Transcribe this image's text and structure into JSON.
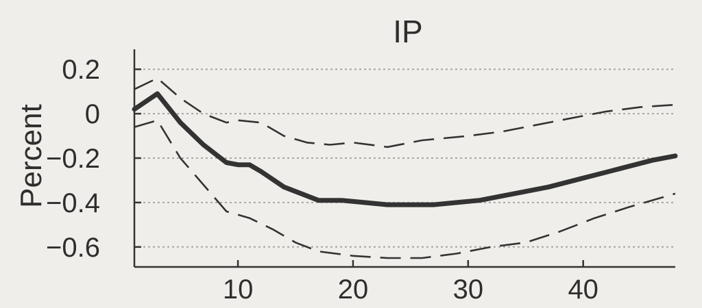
{
  "colors": {
    "background": "#efeeea",
    "line": "#333333",
    "axis": "#333333",
    "grid": "#9a9a9a",
    "text": "#2e2e2e"
  },
  "chart_data": {
    "type": "line",
    "title": "IP",
    "xlabel": "",
    "ylabel": "Percent",
    "xlim": [
      1,
      48
    ],
    "ylim": [
      -0.69,
      0.29
    ],
    "xticks": [
      10,
      20,
      30,
      40
    ],
    "yticks": [
      0.2,
      0,
      -0.2,
      -0.4,
      -0.6
    ],
    "ytick_labels": [
      "0.2",
      "0",
      "−0.2",
      "−0.4",
      "−0.6"
    ],
    "grid": "horizontal dotted",
    "series": [
      {
        "style": "solid-thick",
        "x": [
          1,
          3,
          5,
          7,
          9,
          10,
          11,
          12,
          14,
          17,
          19,
          21,
          23,
          25,
          27,
          29,
          31,
          33,
          35,
          37,
          40,
          43,
          46,
          48
        ],
        "y": [
          0.02,
          0.09,
          -0.04,
          -0.14,
          -0.22,
          -0.23,
          -0.23,
          -0.26,
          -0.33,
          -0.39,
          -0.39,
          -0.4,
          -0.41,
          -0.41,
          -0.41,
          -0.4,
          -0.39,
          -0.37,
          -0.35,
          -0.33,
          -0.29,
          -0.25,
          -0.21,
          -0.19
        ]
      },
      {
        "style": "dashed-upper",
        "x": [
          1,
          3,
          5,
          7,
          9,
          10,
          12,
          14,
          16,
          18,
          20,
          23,
          26,
          30,
          33,
          36,
          40,
          42,
          45,
          48
        ],
        "y": [
          0.11,
          0.16,
          0.07,
          0.0,
          -0.04,
          -0.03,
          -0.04,
          -0.1,
          -0.13,
          -0.14,
          -0.13,
          -0.15,
          -0.12,
          -0.1,
          -0.08,
          -0.05,
          -0.01,
          0.01,
          0.03,
          0.04
        ]
      },
      {
        "style": "dashed-lower",
        "x": [
          1,
          3,
          5,
          7,
          9,
          11,
          13,
          15,
          17,
          20,
          23,
          26,
          29,
          32,
          35,
          38,
          41,
          44,
          48
        ],
        "y": [
          -0.06,
          -0.03,
          -0.2,
          -0.32,
          -0.44,
          -0.47,
          -0.52,
          -0.58,
          -0.62,
          -0.64,
          -0.65,
          -0.65,
          -0.63,
          -0.6,
          -0.58,
          -0.53,
          -0.47,
          -0.42,
          -0.36
        ]
      }
    ]
  }
}
